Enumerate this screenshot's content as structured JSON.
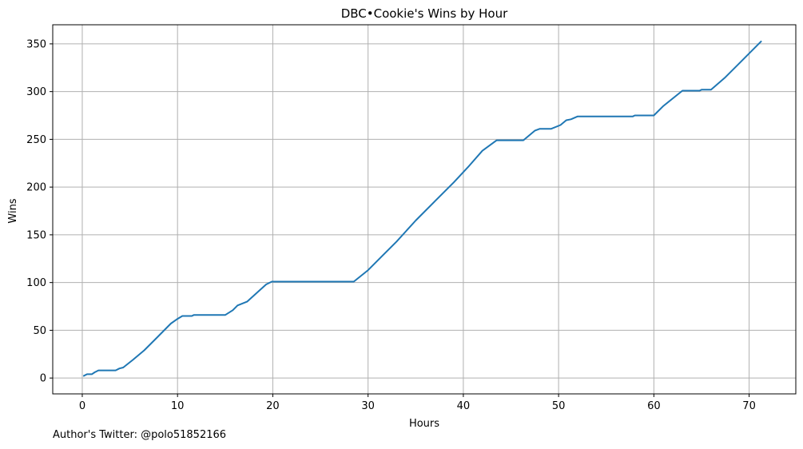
{
  "credit": "Author's Twitter: @polo51852166",
  "chart_data": {
    "type": "line",
    "title": "DBC•Cookie's Wins by Hour",
    "xlabel": "Hours",
    "ylabel": "Wins",
    "xlim": [
      -3.1,
      74.9
    ],
    "ylim": [
      -16.6,
      370
    ],
    "xticks": [
      0,
      10,
      20,
      30,
      40,
      50,
      60,
      70
    ],
    "yticks": [
      0,
      50,
      100,
      150,
      200,
      250,
      300,
      350
    ],
    "grid": true,
    "line_color": "#1f77b4",
    "grid_color": "#b0b0b0",
    "series": [
      {
        "x": [
          0.1,
          0.5,
          1.0,
          1.3,
          1.7,
          2.0,
          3.5,
          3.9,
          4.3,
          5.3,
          6.5,
          7.8,
          9.3,
          10.0,
          10.5,
          11.5,
          11.7,
          15.0,
          15.8,
          16.3,
          17.3,
          18.3,
          19.3,
          19.9,
          28.5,
          30.0,
          31.5,
          33.0,
          35.0,
          37.0,
          39.0,
          40.5,
          42.0,
          43.5,
          46.3,
          47.5,
          48.0,
          49.2,
          50.2,
          50.8,
          51.3,
          52.0,
          57.8,
          58.0,
          60.0,
          61.0,
          63.0,
          64.8,
          65.0,
          66.0,
          67.5,
          69.0,
          71.3
        ],
        "y": [
          2,
          4,
          4,
          6,
          8,
          8,
          8,
          10,
          11,
          19,
          29,
          42,
          57,
          62,
          65,
          65,
          66,
          66,
          71,
          76,
          80,
          89,
          98,
          101,
          101,
          113,
          128,
          143,
          165,
          185,
          205,
          221,
          238,
          249,
          249,
          259,
          261,
          261,
          265,
          270,
          271,
          274,
          274,
          275,
          275,
          285,
          301,
          301,
          302,
          302,
          315,
          330,
          353
        ]
      }
    ]
  }
}
